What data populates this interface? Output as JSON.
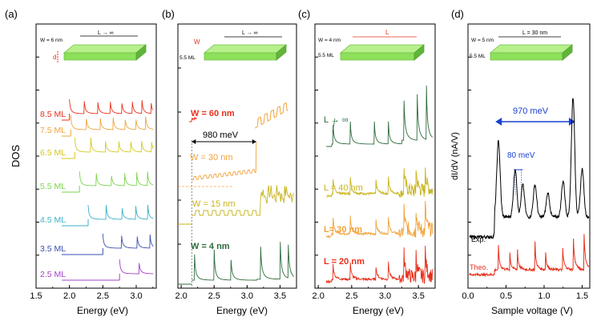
{
  "figure": {
    "panels": [
      {
        "id": "a",
        "label": "(a)",
        "ylabel": "DOS",
        "xlabel": "Energy (eV)",
        "xticks": [
          "1.5",
          "2.0",
          "2.5",
          "3.0"
        ],
        "xlim": [
          1.5,
          3.3
        ],
        "inset": {
          "w_label": "W = 6 nm",
          "l_label": "L → ∞",
          "d_label": "d"
        },
        "series": [
          {
            "name": "8.5 ML",
            "color": "#e8301c",
            "onset": 2.0,
            "spacing": 0.22
          },
          {
            "name": "7.5 ML",
            "color": "#f2a33a",
            "onset": 2.02,
            "spacing": 0.23
          },
          {
            "name": "6.5 ML",
            "color": "#d4c820",
            "onset": 2.08,
            "spacing": 0.24
          },
          {
            "name": "5.5 ML",
            "color": "#7ad64a",
            "onset": 2.15,
            "spacing": 0.25
          },
          {
            "name": "4.5 ML",
            "color": "#3ab0c8",
            "onset": 2.28,
            "spacing": 0.27
          },
          {
            "name": "3.5 ML",
            "color": "#3a4fb0",
            "onset": 2.5,
            "spacing": 0.28
          },
          {
            "name": "2.5 ML",
            "color": "#a640c8",
            "onset": 2.75,
            "spacing": 0.29
          }
        ]
      },
      {
        "id": "b",
        "label": "(b)",
        "xlabel": "Energy (eV)",
        "xticks": [
          "2.0",
          "2.5",
          "3.0",
          "3.5"
        ],
        "xlim": [
          1.95,
          3.75
        ],
        "inset": {
          "w_label": "W",
          "l_label": "L → ∞",
          "d_label": "5.5 ML"
        },
        "annotation": "980 meV",
        "series": [
          {
            "name": "W = 60 nm",
            "color": "#e8301c"
          },
          {
            "name": "W = 30 nm",
            "color": "#f2a33a"
          },
          {
            "name": "W = 15 nm",
            "color": "#c8b41a"
          },
          {
            "name": "W = 4 nm",
            "color": "#2e6b3c"
          }
        ]
      },
      {
        "id": "c",
        "label": "(c)",
        "xlabel": "Energy (eV)",
        "xticks": [
          "2.0",
          "2.5",
          "3.0",
          "3.5"
        ],
        "xlim": [
          1.95,
          3.75
        ],
        "inset": {
          "w_label": "W = 4 nm",
          "l_label": "L",
          "d_label": "5.5 ML"
        },
        "series": [
          {
            "name": "L → ∞",
            "color": "#2e6b3c"
          },
          {
            "name": "L = 40 nm",
            "color": "#c8b41a"
          },
          {
            "name": "L= 30 nm",
            "color": "#f2a33a"
          },
          {
            "name": "L = 20 nm",
            "color": "#e8301c"
          }
        ]
      },
      {
        "id": "d",
        "label": "(d)",
        "ylabel": "dI/dV (nA/V)",
        "xlabel": "Sample voltage (V)",
        "xticks": [
          "0.0",
          "0.5",
          "1.0",
          "1.5"
        ],
        "xlim": [
          0.0,
          1.6
        ],
        "inset": {
          "w_label": "W = 5 nm",
          "l_label": "L = 30 nm",
          "d_label": "5.5 ML"
        },
        "annotations": [
          "970 meV",
          "80 meV"
        ],
        "series": [
          {
            "name": "Exp.",
            "color": "#000000"
          },
          {
            "name": "Theo.",
            "color": "#e8301c"
          }
        ]
      }
    ]
  }
}
